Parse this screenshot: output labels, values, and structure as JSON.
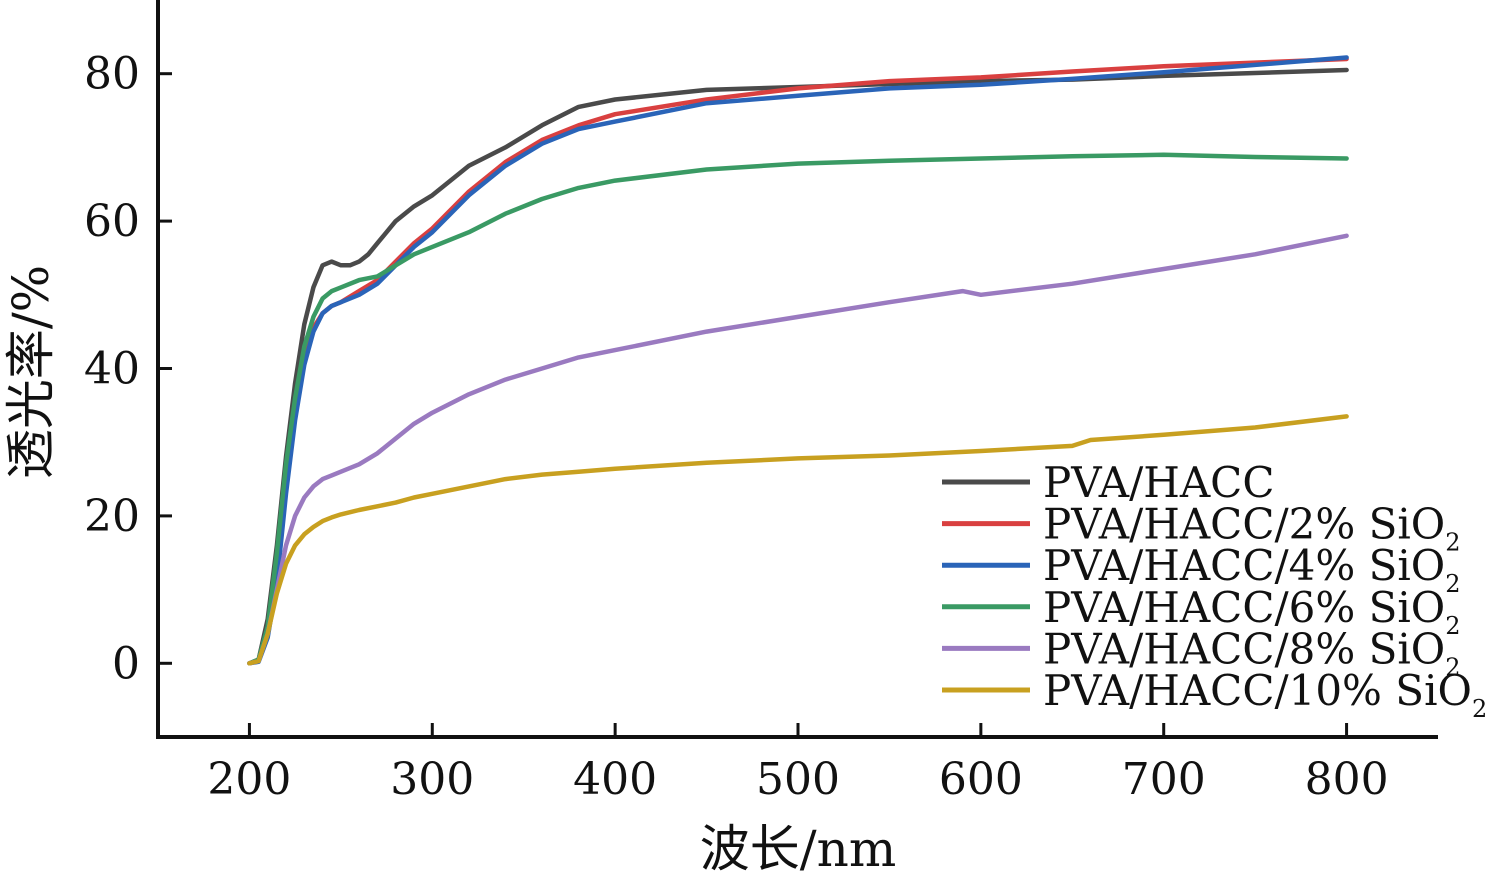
{
  "chart_data": {
    "type": "line",
    "xlabel": "波长/nm",
    "ylabel": "透光率/%",
    "xlim": [
      150,
      850
    ],
    "ylim": [
      -10,
      90
    ],
    "xticks": [
      200,
      300,
      400,
      500,
      600,
      700,
      800
    ],
    "yticks": [
      0,
      20,
      40,
      60,
      80
    ],
    "grid": false,
    "legend_position": "bottom-right",
    "series": [
      {
        "name": "PVA/HACC",
        "name_sub": "",
        "color": "#4a4a4a",
        "x": [
          200,
          205,
          210,
          215,
          220,
          225,
          230,
          235,
          240,
          245,
          250,
          255,
          260,
          265,
          270,
          280,
          290,
          300,
          320,
          340,
          360,
          380,
          400,
          450,
          500,
          550,
          600,
          650,
          700,
          750,
          800
        ],
        "y": [
          0,
          0.5,
          6,
          16,
          28,
          38,
          46,
          51,
          54,
          54.5,
          54,
          54,
          54.5,
          55.5,
          57,
          60,
          62,
          63.5,
          67.5,
          70,
          73,
          75.5,
          76.5,
          77.8,
          78.2,
          78.6,
          79,
          79.2,
          79.7,
          80.1,
          80.5
        ]
      },
      {
        "name": "PVA/HACC/2% SiO",
        "name_sub": "2",
        "color": "#d94040",
        "x": [
          200,
          205,
          210,
          215,
          220,
          225,
          230,
          235,
          240,
          245,
          250,
          260,
          270,
          280,
          290,
          300,
          320,
          340,
          360,
          380,
          400,
          450,
          500,
          550,
          600,
          650,
          700,
          750,
          800
        ],
        "y": [
          0,
          0.3,
          4,
          12,
          24,
          34,
          41,
          45.5,
          47.5,
          48.5,
          49,
          50.5,
          52,
          54.5,
          57,
          59,
          64,
          68,
          71,
          73,
          74.5,
          76.5,
          78,
          79,
          79.5,
          80.3,
          81,
          81.5,
          82
        ]
      },
      {
        "name": "PVA/HACC/4% SiO",
        "name_sub": "2",
        "color": "#2a64b8",
        "x": [
          200,
          205,
          210,
          215,
          220,
          225,
          230,
          235,
          240,
          245,
          250,
          260,
          270,
          280,
          290,
          300,
          320,
          340,
          360,
          380,
          400,
          450,
          500,
          550,
          600,
          650,
          700,
          750,
          800
        ],
        "y": [
          0,
          0.2,
          3.5,
          11,
          23,
          33,
          40.5,
          45,
          47.5,
          48.5,
          49,
          50,
          51.5,
          54,
          56.5,
          58.5,
          63.5,
          67.5,
          70.5,
          72.5,
          73.5,
          76,
          77,
          78,
          78.5,
          79.3,
          80.2,
          81.2,
          82.2
        ]
      },
      {
        "name": "PVA/HACC/6% SiO",
        "name_sub": "2",
        "color": "#3a9a64",
        "x": [
          200,
          205,
          210,
          215,
          220,
          225,
          230,
          235,
          240,
          245,
          250,
          260,
          270,
          280,
          290,
          300,
          320,
          340,
          360,
          380,
          400,
          450,
          500,
          550,
          600,
          650,
          700,
          750,
          800
        ],
        "y": [
          0,
          0.5,
          5,
          15,
          27,
          36,
          43,
          47,
          49.5,
          50.5,
          51,
          52,
          52.5,
          54,
          55.5,
          56.5,
          58.5,
          61,
          63,
          64.5,
          65.5,
          67,
          67.8,
          68.2,
          68.5,
          68.8,
          69,
          68.7,
          68.5
        ]
      },
      {
        "name": "PVA/HACC/8% SiO",
        "name_sub": "2",
        "color": "#9a7ac0",
        "x": [
          200,
          205,
          210,
          215,
          220,
          225,
          230,
          235,
          240,
          245,
          250,
          260,
          270,
          280,
          290,
          300,
          320,
          340,
          360,
          380,
          400,
          450,
          500,
          550,
          590,
          600,
          650,
          700,
          750,
          800
        ],
        "y": [
          0,
          0.3,
          4,
          10,
          16,
          20,
          22.5,
          24,
          25,
          25.5,
          26,
          27,
          28.5,
          30.5,
          32.5,
          34,
          36.5,
          38.5,
          40,
          41.5,
          42.5,
          45,
          47,
          49,
          50.5,
          50,
          51.5,
          53.5,
          55.5,
          58
        ]
      },
      {
        "name": "PVA/HACC/10% SiO",
        "name_sub": "2",
        "color": "#c8a020",
        "x": [
          200,
          205,
          210,
          215,
          220,
          225,
          230,
          235,
          240,
          245,
          250,
          260,
          270,
          280,
          290,
          300,
          320,
          340,
          360,
          380,
          400,
          450,
          500,
          550,
          600,
          650,
          660,
          700,
          750,
          800
        ],
        "y": [
          0,
          0.3,
          4,
          9.5,
          13.5,
          16,
          17.5,
          18.5,
          19.3,
          19.8,
          20.2,
          20.8,
          21.3,
          21.8,
          22.5,
          23,
          24,
          25,
          25.6,
          26,
          26.4,
          27.2,
          27.8,
          28.2,
          28.8,
          29.5,
          30.3,
          31,
          32,
          33.5
        ]
      }
    ]
  }
}
